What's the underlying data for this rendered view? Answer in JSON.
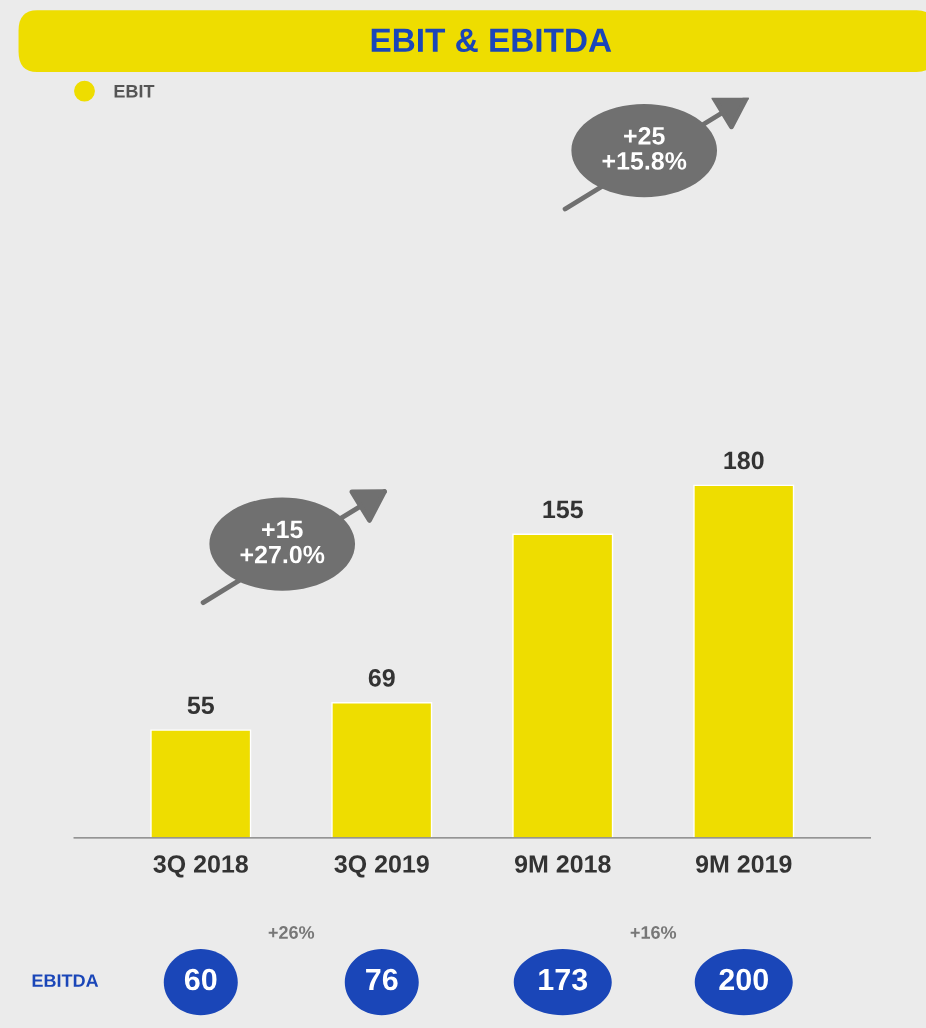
{
  "chart_data": {
    "type": "bar",
    "title": "EBIT & EBITDA",
    "categories": [
      "3Q 2018",
      "3Q 2019",
      "9M 2018",
      "9M 2019"
    ],
    "series": [
      {
        "name": "EBIT",
        "color": "#eedd00",
        "values": [
          55,
          69,
          155,
          180
        ]
      }
    ],
    "data_labels": true,
    "legend": "top left",
    "grid": false,
    "annotations": [
      "+15\n+27.0%",
      "+25\n+15.8%",
      "+26%",
      "+16%",
      "EBITDA",
      "60",
      "76",
      "173",
      "200"
    ]
  }
}
